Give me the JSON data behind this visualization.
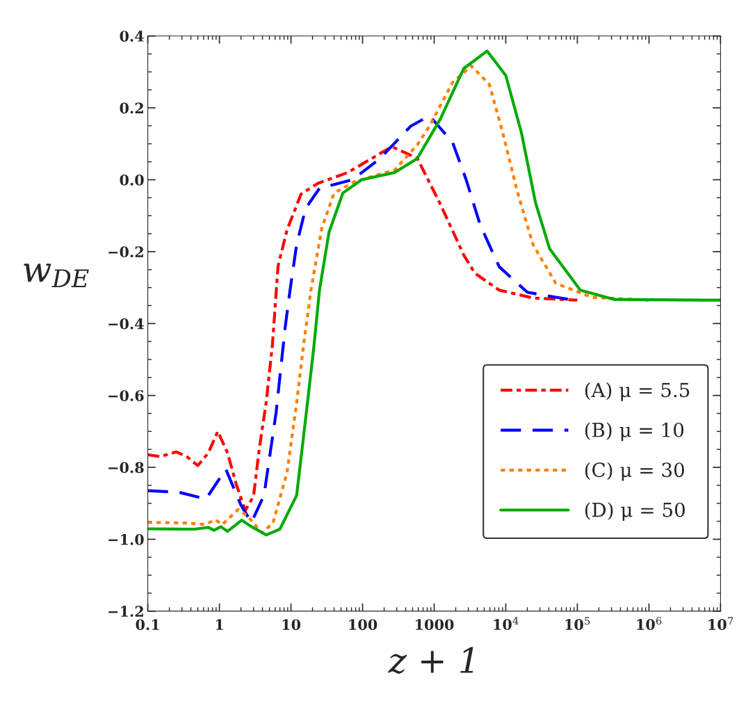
{
  "chart_data": {
    "type": "line",
    "xlabel": "z + 1",
    "ylabel": "w$_{DE}$",
    "log": "x",
    "grid": false,
    "legend": "bottom right",
    "marker": "none",
    "xlim": [
      0.1,
      10000000
    ],
    "xticks": [
      0.1,
      1,
      10,
      100,
      1000,
      {
        "value": 10000,
        "label": "10$^{4}$"
      },
      {
        "value": 100000,
        "label": "10$^{5}$"
      },
      {
        "value": 1000000,
        "label": "10$^{6}$"
      },
      {
        "value": 10000000,
        "label": "10$^{7}$"
      }
    ],
    "ylim": [
      -1.2,
      0.4
    ],
    "yticks": [
      {
        "value": -1.2,
        "label": "−1.2"
      },
      {
        "value": -1.0,
        "label": "−1.0"
      },
      {
        "value": -0.8,
        "label": "−0.8"
      },
      {
        "value": -0.6,
        "label": "−0.6"
      },
      {
        "value": -0.4,
        "label": "−0.4"
      },
      {
        "value": -0.2,
        "label": "−0.2"
      },
      {
        "value": 0,
        "label": "0.0"
      },
      0.2,
      0.4
    ],
    "series": [
      {
        "name": "(A) μ = 5.5",
        "color": "#ff0000",
        "line_style": "dashdot",
        "x": [
          0.1,
          0.15,
          0.25,
          0.35,
          0.5,
          0.7,
          0.95,
          1.3,
          1.72,
          2.3,
          3.0,
          3.6,
          4.5,
          5.5,
          6.6,
          8.8,
          13.8,
          23.7,
          62,
          256,
          580,
          1220,
          2600,
          3700,
          8100,
          24000,
          100000
        ],
        "values": [
          -0.765,
          -0.77,
          -0.757,
          -0.77,
          -0.795,
          -0.76,
          -0.7,
          -0.76,
          -0.847,
          -0.92,
          -0.88,
          -0.75,
          -0.62,
          -0.46,
          -0.24,
          -0.14,
          -0.04,
          -0.01,
          0.02,
          0.092,
          0.06,
          -0.068,
          -0.21,
          -0.26,
          -0.307,
          -0.329,
          -0.335
        ]
      },
      {
        "name": "(B) μ = 10",
        "color": "#0000ff",
        "line_style": "dashed",
        "x": [
          0.1,
          0.27,
          0.65,
          1.23,
          2.0,
          2.8,
          4.2,
          6.2,
          8.3,
          9.7,
          12,
          16,
          25,
          72,
          175,
          470,
          860,
          1800,
          2800,
          4400,
          8100,
          20000,
          76000
        ],
        "values": [
          -0.865,
          -0.869,
          -0.888,
          -0.805,
          -0.905,
          -0.953,
          -0.878,
          -0.647,
          -0.41,
          -0.307,
          -0.18,
          -0.08,
          -0.024,
          0.0,
          0.059,
          0.149,
          0.178,
          0.105,
          0.0,
          -0.126,
          -0.242,
          -0.313,
          -0.333
        ]
      },
      {
        "name": "(C) μ = 30",
        "color": "#ff7f00",
        "line_style": "dotted",
        "x": [
          0.1,
          0.38,
          0.63,
          0.88,
          1.1,
          1.84,
          2.5,
          3.9,
          5.6,
          8.8,
          12,
          15,
          19,
          27,
          40,
          78,
          280,
          580,
          860,
          1800,
          3300,
          5900,
          9100,
          14400,
          24000,
          50000,
          160000,
          1000000
        ],
        "values": [
          -0.953,
          -0.955,
          -0.959,
          -0.946,
          -0.959,
          -0.917,
          -0.936,
          -0.982,
          -0.955,
          -0.815,
          -0.62,
          -0.46,
          -0.307,
          -0.134,
          -0.037,
          -0.005,
          0.027,
          0.097,
          0.149,
          0.27,
          0.317,
          0.265,
          0.13,
          -0.031,
          -0.18,
          -0.288,
          -0.327,
          -0.335
        ]
      },
      {
        "name": "(D) μ = 50",
        "color": "#00aa00",
        "line_style": "solid",
        "x": [
          0.1,
          0.45,
          0.7,
          0.84,
          1.05,
          1.3,
          2.05,
          2.7,
          4.5,
          7,
          12,
          17,
          21,
          25,
          34,
          53,
          97,
          280,
          580,
          1220,
          2600,
          5500,
          10000,
          16600,
          26000,
          41000,
          110000,
          330000,
          10000000
        ],
        "values": [
          -0.971,
          -0.972,
          -0.967,
          -0.975,
          -0.965,
          -0.978,
          -0.947,
          -0.963,
          -0.988,
          -0.972,
          -0.878,
          -0.62,
          -0.46,
          -0.307,
          -0.146,
          -0.037,
          0.0,
          0.02,
          0.059,
          0.169,
          0.31,
          0.358,
          0.29,
          0.13,
          -0.063,
          -0.192,
          -0.307,
          -0.333,
          -0.335
        ]
      }
    ]
  }
}
